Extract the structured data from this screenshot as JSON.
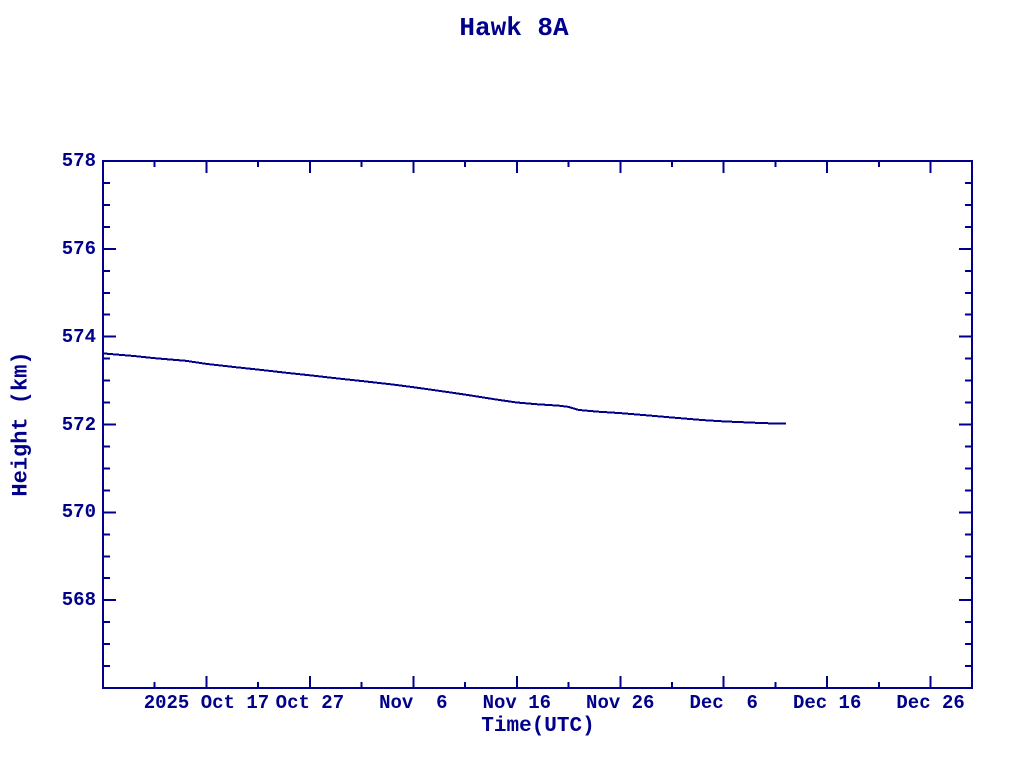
{
  "colors": {
    "background": "#ffffff",
    "axis": "#00008B",
    "text": "#00008B",
    "line": "#00008B"
  },
  "chart_data": {
    "type": "line",
    "title": "Hawk 8A",
    "xlabel": "Time(UTC)",
    "ylabel": "Height (km)",
    "grid": false,
    "legend": false,
    "x_axis": {
      "unit": "days",
      "start_date": "2025-10-07",
      "range_days": [
        0,
        84
      ],
      "major_ticks": [
        {
          "day": 10,
          "label": "2025 Oct 17"
        },
        {
          "day": 20,
          "label": "Oct 27"
        },
        {
          "day": 30,
          "label": "Nov  6"
        },
        {
          "day": 40,
          "label": "Nov 16"
        },
        {
          "day": 50,
          "label": "Nov 26"
        },
        {
          "day": 60,
          "label": "Dec  6"
        },
        {
          "day": 70,
          "label": "Dec 16"
        },
        {
          "day": 80,
          "label": "Dec 26"
        }
      ],
      "minor_tick_days": [
        5,
        15,
        25,
        35,
        45,
        55,
        65,
        75
      ]
    },
    "y_axis": {
      "range": [
        566,
        578
      ],
      "minor_step": 0.5,
      "major_ticks": [
        {
          "value": 578,
          "label": "578"
        },
        {
          "value": 576,
          "label": "576"
        },
        {
          "value": 574,
          "label": "574"
        },
        {
          "value": 572,
          "label": "572"
        },
        {
          "value": 570,
          "label": "570"
        },
        {
          "value": 568,
          "label": "568"
        }
      ]
    },
    "series": [
      {
        "name": "Hawk 8A height",
        "color": "#00008B",
        "points_day_km": [
          [
            0,
            573.62
          ],
          [
            3,
            573.56
          ],
          [
            5,
            573.51
          ],
          [
            8,
            573.45
          ],
          [
            10,
            573.38
          ],
          [
            13,
            573.3
          ],
          [
            15,
            573.25
          ],
          [
            18,
            573.17
          ],
          [
            20,
            573.12
          ],
          [
            23,
            573.04
          ],
          [
            25,
            572.99
          ],
          [
            28,
            572.91
          ],
          [
            30,
            572.85
          ],
          [
            33,
            572.75
          ],
          [
            35,
            572.68
          ],
          [
            38,
            572.57
          ],
          [
            40,
            572.5
          ],
          [
            42,
            572.46
          ],
          [
            44,
            572.43
          ],
          [
            45,
            572.4
          ],
          [
            46,
            572.33
          ],
          [
            48,
            572.29
          ],
          [
            50,
            572.26
          ],
          [
            53,
            572.2
          ],
          [
            55,
            572.16
          ],
          [
            58,
            572.1
          ],
          [
            60,
            572.07
          ],
          [
            62,
            572.05
          ],
          [
            64,
            572.03
          ],
          [
            66,
            572.02
          ]
        ]
      }
    ]
  }
}
